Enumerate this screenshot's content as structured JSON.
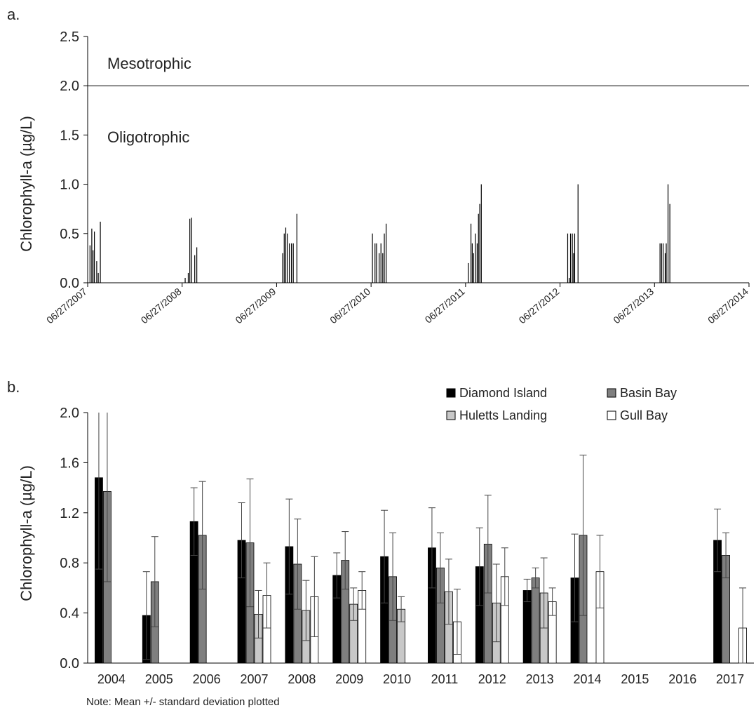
{
  "chart_data": [
    {
      "panel_label": "a.",
      "type": "bar",
      "ylabel": "Chlorophyll-a (µg/L)",
      "ylim": [
        0,
        2.5
      ],
      "yticks": [
        "0.0",
        "0.5",
        "1.0",
        "1.5",
        "2.0",
        "2.5"
      ],
      "xticks": [
        "06/27/2007",
        "06/27/2008",
        "06/27/2009",
        "06/27/2010",
        "06/27/2011",
        "06/27/2012",
        "06/27/2013",
        "06/27/2014"
      ],
      "reference_line": {
        "y": 2.0,
        "label_above": "Mesotrophic",
        "label_below": "Oligotrophic"
      },
      "points": [
        {
          "x": "2007-07-06",
          "y": 0.38
        },
        {
          "x": "2007-07-13",
          "y": 0.55
        },
        {
          "x": "2007-07-18",
          "y": 0.33
        },
        {
          "x": "2007-07-23",
          "y": 0.52
        },
        {
          "x": "2007-08-01",
          "y": 0.22
        },
        {
          "x": "2007-08-07",
          "y": 0.1
        },
        {
          "x": "2007-08-15",
          "y": 0.62
        },
        {
          "x": "2008-07-08",
          "y": 0.05
        },
        {
          "x": "2008-07-20",
          "y": 0.1
        },
        {
          "x": "2008-07-26",
          "y": 0.65
        },
        {
          "x": "2008-08-02",
          "y": 0.66
        },
        {
          "x": "2008-08-14",
          "y": 0.28
        },
        {
          "x": "2008-08-22",
          "y": 0.36
        },
        {
          "x": "2009-07-20",
          "y": 0.3
        },
        {
          "x": "2009-07-26",
          "y": 0.5
        },
        {
          "x": "2009-08-01",
          "y": 0.56
        },
        {
          "x": "2009-08-07",
          "y": 0.5
        },
        {
          "x": "2009-08-15",
          "y": 0.4
        },
        {
          "x": "2009-08-23",
          "y": 0.4
        },
        {
          "x": "2009-08-30",
          "y": 0.4
        },
        {
          "x": "2009-09-13",
          "y": 0.7
        },
        {
          "x": "2010-07-02",
          "y": 0.5
        },
        {
          "x": "2010-07-12",
          "y": 0.4
        },
        {
          "x": "2010-07-18",
          "y": 0.4
        },
        {
          "x": "2010-07-28",
          "y": 0.3
        },
        {
          "x": "2010-08-04",
          "y": 0.4
        },
        {
          "x": "2010-08-11",
          "y": 0.3
        },
        {
          "x": "2010-08-17",
          "y": 0.5
        },
        {
          "x": "2010-08-24",
          "y": 0.6
        },
        {
          "x": "2011-07-08",
          "y": 0.2
        },
        {
          "x": "2011-07-18",
          "y": 0.6
        },
        {
          "x": "2011-07-23",
          "y": 0.4
        },
        {
          "x": "2011-07-28",
          "y": 0.3
        },
        {
          "x": "2011-08-04",
          "y": 0.5
        },
        {
          "x": "2011-08-11",
          "y": 0.4
        },
        {
          "x": "2011-08-16",
          "y": 0.7
        },
        {
          "x": "2011-08-21",
          "y": 0.8
        },
        {
          "x": "2011-08-27",
          "y": 1.0
        },
        {
          "x": "2012-07-26",
          "y": 0.5
        },
        {
          "x": "2012-08-01",
          "y": 0.05
        },
        {
          "x": "2012-08-06",
          "y": 0.5
        },
        {
          "x": "2012-08-13",
          "y": 0.5
        },
        {
          "x": "2012-08-18",
          "y": 0.3
        },
        {
          "x": "2012-08-22",
          "y": 0.5
        },
        {
          "x": "2012-09-04",
          "y": 1.0
        },
        {
          "x": "2013-07-18",
          "y": 0.4
        },
        {
          "x": "2013-07-24",
          "y": 0.4
        },
        {
          "x": "2013-07-30",
          "y": 0.4
        },
        {
          "x": "2013-08-07",
          "y": 0.3
        },
        {
          "x": "2013-08-11",
          "y": 0.4
        },
        {
          "x": "2013-08-18",
          "y": 1.0
        },
        {
          "x": "2013-08-25",
          "y": 0.8
        }
      ]
    },
    {
      "panel_label": "b.",
      "type": "bar",
      "ylabel": "Chlorophyll-a (µg/L)",
      "ylim": [
        0,
        2.0
      ],
      "yticks": [
        "0.0",
        "0.4",
        "0.8",
        "1.2",
        "1.6",
        "2.0"
      ],
      "categories": [
        "2004",
        "2005",
        "2006",
        "2007",
        "2008",
        "2009",
        "2010",
        "2011",
        "2012",
        "2013",
        "2014",
        "2015",
        "2016",
        "2017"
      ],
      "legend_position": "top-right",
      "series": [
        {
          "name": "Diamond Island",
          "color": "#000000",
          "values": [
            1.48,
            0.38,
            1.13,
            0.98,
            0.93,
            0.7,
            0.85,
            0.92,
            0.77,
            0.58,
            0.68,
            null,
            null,
            0.98
          ],
          "sd": [
            0.73,
            0.35,
            0.27,
            0.3,
            0.38,
            0.18,
            0.37,
            0.32,
            0.31,
            0.09,
            0.35,
            null,
            null,
            0.25
          ]
        },
        {
          "name": "Basin Bay",
          "color": "#7f7f7f",
          "values": [
            1.37,
            0.65,
            1.02,
            0.96,
            0.79,
            0.82,
            0.69,
            0.76,
            0.95,
            0.68,
            1.02,
            null,
            null,
            0.86
          ],
          "sd": [
            0.72,
            0.36,
            0.43,
            0.51,
            0.36,
            0.23,
            0.35,
            0.28,
            0.39,
            0.08,
            0.64,
            null,
            null,
            0.18
          ]
        },
        {
          "name": "Huletts Landing",
          "color": "#c8c8c8",
          "values": [
            null,
            null,
            null,
            0.39,
            0.42,
            0.47,
            0.43,
            0.57,
            0.48,
            0.56,
            null,
            null,
            null,
            null
          ],
          "sd": [
            null,
            null,
            null,
            0.19,
            0.24,
            0.13,
            0.1,
            0.26,
            0.31,
            0.28,
            null,
            null,
            null,
            null
          ]
        },
        {
          "name": "Gull Bay",
          "color": "#ffffff",
          "values": [
            null,
            null,
            null,
            0.54,
            0.53,
            0.58,
            null,
            0.33,
            0.69,
            0.49,
            0.73,
            null,
            null,
            0.28
          ],
          "sd": [
            null,
            null,
            null,
            0.26,
            0.32,
            0.15,
            null,
            0.26,
            0.23,
            0.11,
            0.29,
            null,
            null,
            0.32
          ]
        }
      ],
      "note": "Note: Mean +/- standard deviation plotted"
    }
  ]
}
